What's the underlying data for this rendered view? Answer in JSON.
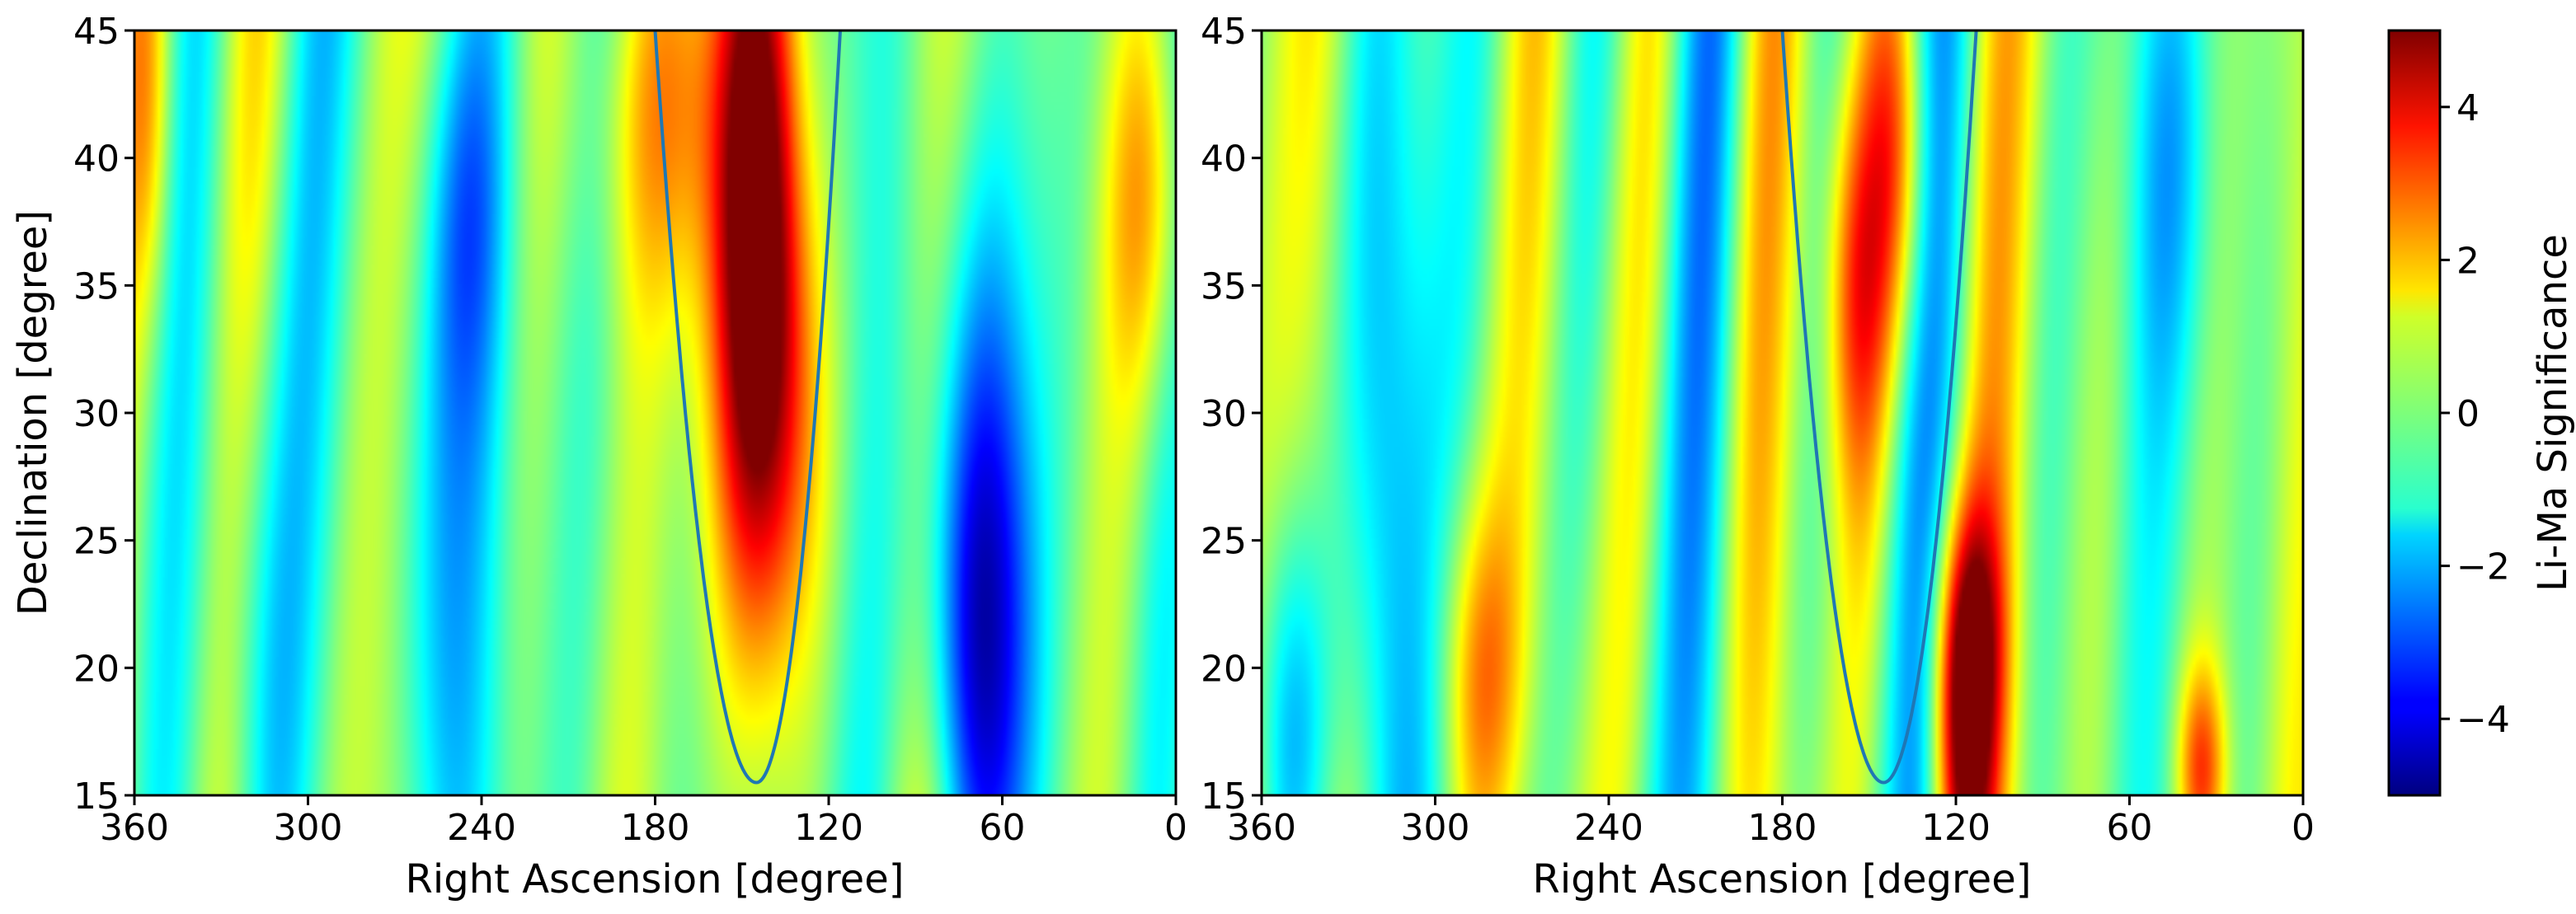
{
  "chart_data": [
    {
      "type": "heatmap",
      "panel": "left",
      "xlabel": "Right Ascension [degree]",
      "ylabel": "Declination [degree]",
      "xlim": [
        360,
        0
      ],
      "ylim": [
        15,
        45
      ],
      "xticks": [
        360,
        300,
        240,
        180,
        120,
        60,
        0
      ],
      "yticks": [
        15,
        20,
        25,
        30,
        35,
        40,
        45
      ],
      "colormap": "jet",
      "color_range": [
        -5,
        5
      ],
      "hotspots": [
        {
          "ra": 145,
          "dec": 40,
          "significance": 4.5,
          "ra_width": 10,
          "dec_width": 10
        },
        {
          "ra": 140,
          "dec": 30,
          "significance": 3.0,
          "ra_width": 14,
          "dec_width": 8
        },
        {
          "ra": 175,
          "dec": 42,
          "significance": 2.0,
          "ra_width": 18,
          "dec_width": 6
        },
        {
          "ra": 10,
          "dec": 38,
          "significance": 2.0,
          "ra_width": 10,
          "dec_width": 6
        },
        {
          "ra": 355,
          "dec": 42,
          "significance": 1.5,
          "ra_width": 6,
          "dec_width": 6
        },
        {
          "ra": 70,
          "dec": 28,
          "significance": -2.5,
          "ra_width": 12,
          "dec_width": 10
        },
        {
          "ra": 70,
          "dec": 20,
          "significance": -2.5,
          "ra_width": 14,
          "dec_width": 8
        },
        {
          "ra": 255,
          "dec": 25,
          "significance": -2.0,
          "ra_width": 12,
          "dec_width": 14
        },
        {
          "ra": 245,
          "dec": 38,
          "significance": -1.5,
          "ra_width": 10,
          "dec_width": 6
        },
        {
          "ra": 320,
          "dec": 22,
          "significance": -1.2,
          "ra_width": 10,
          "dec_width": 10
        }
      ],
      "overlay_curve": {
        "apex_ra": 145,
        "apex_dec": 15.5,
        "top_ra": [
          180,
          116
        ],
        "top_dec": 45,
        "color": "#1f77b4"
      }
    },
    {
      "type": "heatmap",
      "panel": "right",
      "xlabel": "Right Ascension [degree]",
      "xlim": [
        360,
        0
      ],
      "ylim": [
        15,
        45
      ],
      "xticks": [
        360,
        300,
        240,
        180,
        120,
        60,
        0
      ],
      "yticks": [
        15,
        20,
        25,
        30,
        35,
        40,
        45
      ],
      "colormap": "jet",
      "color_range": [
        -5,
        5
      ],
      "hotspots": [
        {
          "ra": 118,
          "dec": 16,
          "significance": 3.5,
          "ra_width": 8,
          "dec_width": 6
        },
        {
          "ra": 115,
          "dec": 21,
          "significance": 3.0,
          "ra_width": 8,
          "dec_width": 4
        },
        {
          "ra": 140,
          "dec": 40,
          "significance": 2.5,
          "ra_width": 8,
          "dec_width": 6
        },
        {
          "ra": 155,
          "dec": 35,
          "significance": 2.5,
          "ra_width": 8,
          "dec_width": 6
        },
        {
          "ra": 35,
          "dec": 16,
          "significance": 3.0,
          "ra_width": 6,
          "dec_width": 3
        },
        {
          "ra": 285,
          "dec": 20,
          "significance": 2.0,
          "ra_width": 10,
          "dec_width": 5
        },
        {
          "ra": 320,
          "dec": 30,
          "significance": -1.5,
          "ra_width": 12,
          "dec_width": 14
        },
        {
          "ra": 350,
          "dec": 18,
          "significance": -2.0,
          "ra_width": 10,
          "dec_width": 6
        },
        {
          "ra": 45,
          "dec": 40,
          "significance": -1.5,
          "ra_width": 10,
          "dec_width": 8
        }
      ],
      "overlay_curve": {
        "apex_ra": 145,
        "apex_dec": 15.5,
        "top_ra": [
          180,
          113
        ],
        "top_dec": 45,
        "color": "#1f77b4"
      }
    }
  ],
  "colorbar": {
    "label": "Li-Ma Significance",
    "ticks": [
      4,
      2,
      0,
      -2,
      -4
    ],
    "tick_labels": [
      "4",
      "2",
      "0",
      "−2",
      "−4"
    ],
    "range": [
      -5,
      5
    ]
  },
  "left_panel": {
    "xlabel": "Right Ascension [degree]",
    "ylabel": "Declination [degree]",
    "xtick_labels": [
      "360",
      "300",
      "240",
      "180",
      "120",
      "60",
      "0"
    ],
    "ytick_labels": [
      "15",
      "20",
      "25",
      "30",
      "35",
      "40",
      "45"
    ]
  },
  "right_panel": {
    "xlabel": "Right Ascension [degree]",
    "xtick_labels": [
      "360",
      "300",
      "240",
      "180",
      "120",
      "60",
      "0"
    ],
    "ytick_labels": [
      "15",
      "20",
      "25",
      "30",
      "35",
      "40",
      "45"
    ]
  }
}
